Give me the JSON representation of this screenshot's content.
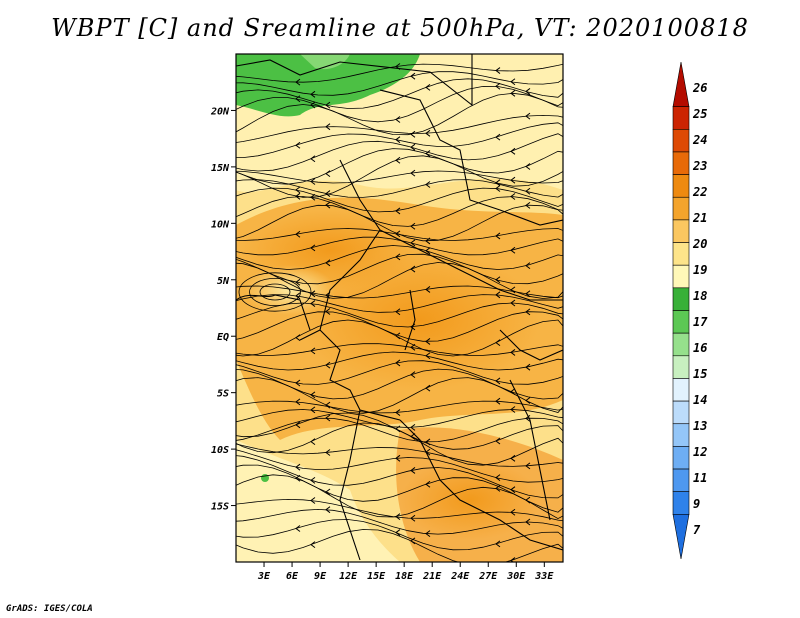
{
  "title": "WBPT [C] and Sreamline at 500hPa, VT: 2020100818",
  "credit": "GrADS: IGES/COLA",
  "lat_labels": [
    "20N",
    "15N",
    "10N",
    "5N",
    "EQ",
    "5S",
    "10S",
    "15S"
  ],
  "lat_values": [
    20,
    15,
    10,
    5,
    0,
    -5,
    -10,
    -15
  ],
  "lon_labels": [
    "3E",
    "6E",
    "9E",
    "12E",
    "15E",
    "18E",
    "21E",
    "24E",
    "27E",
    "30E",
    "33E"
  ],
  "lon_values": [
    3,
    6,
    9,
    12,
    15,
    18,
    21,
    24,
    27,
    30,
    33
  ],
  "colorbar": {
    "labels": [
      "7",
      "9",
      "11",
      "12",
      "13",
      "14",
      "15",
      "16",
      "17",
      "18",
      "19",
      "20",
      "21",
      "22",
      "23",
      "24",
      "25",
      "26"
    ],
    "colors": [
      "#1e6fe0",
      "#2f82ea",
      "#4e98f0",
      "#6eaef4",
      "#94c6f8",
      "#bcdcfb",
      "#e2f2fd",
      "#c8f0c0",
      "#96e08c",
      "#5cc854",
      "#38b038",
      "#fff8b8",
      "#fde48a",
      "#fbc760",
      "#f4a42c",
      "#ee8a10",
      "#e86a08",
      "#de4a04",
      "#cc2402",
      "#b40c00"
    ]
  },
  "map": {
    "lon_range": [
      0,
      35
    ],
    "lat_range": [
      -20,
      25
    ]
  }
}
